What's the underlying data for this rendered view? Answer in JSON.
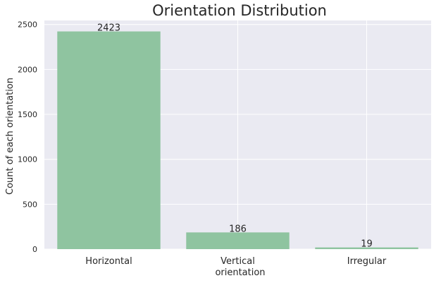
{
  "chart_data": {
    "type": "bar",
    "title": "Orientation Distribution",
    "xlabel": "orientation",
    "ylabel": "Count of each orientation",
    "categories": [
      "Horizontal",
      "Vertical",
      "Irregular"
    ],
    "values": [
      2423,
      186,
      19
    ],
    "data_labels": [
      "2423",
      "186",
      "19"
    ],
    "ylim": [
      0,
      2545
    ],
    "yticks": [
      0,
      500,
      1000,
      1500,
      2000,
      2500
    ],
    "ytick_labels": [
      "0",
      "500",
      "1000",
      "1500",
      "2000",
      "2500"
    ],
    "grid": true,
    "colors": {
      "bar": "#8fc4a0",
      "plot_background": "#eaeaf2",
      "grid": "#ffffff"
    }
  }
}
